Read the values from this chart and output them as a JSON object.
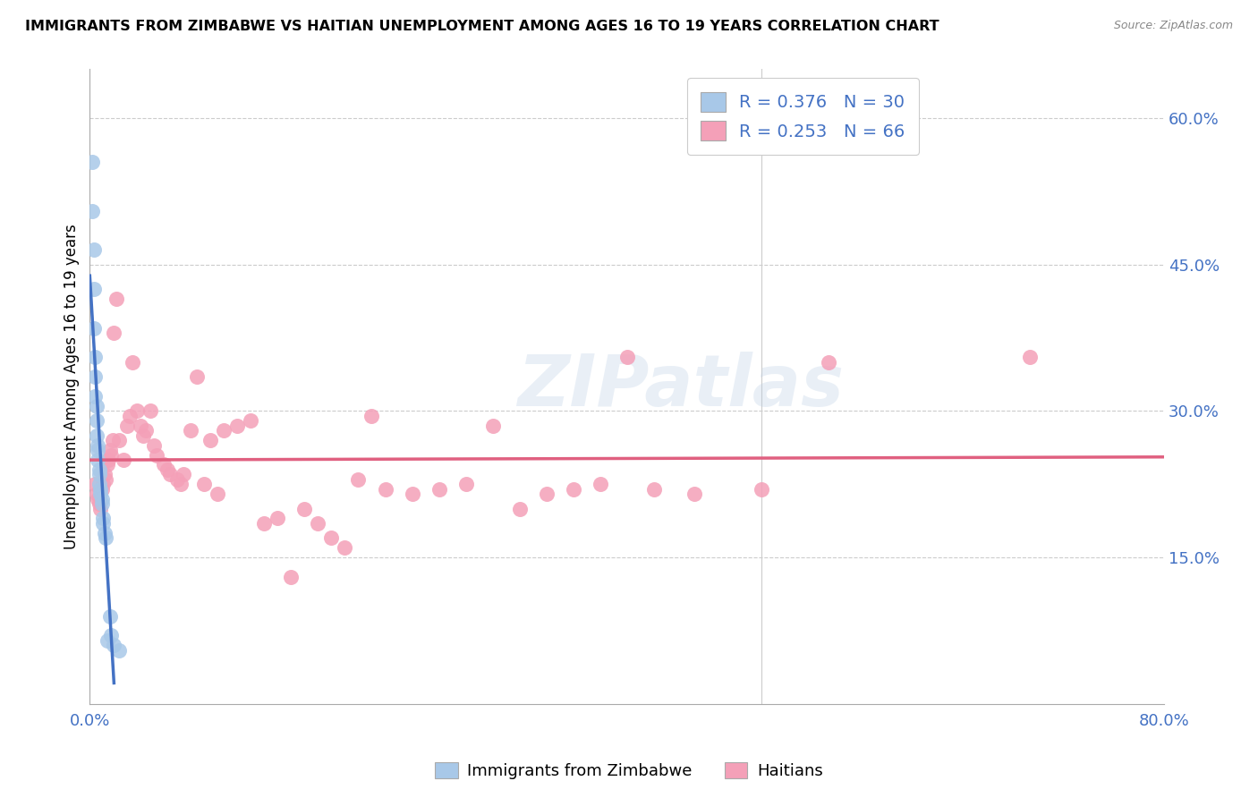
{
  "title": "IMMIGRANTS FROM ZIMBABWE VS HAITIAN UNEMPLOYMENT AMONG AGES 16 TO 19 YEARS CORRELATION CHART",
  "source": "Source: ZipAtlas.com",
  "ylabel": "Unemployment Among Ages 16 to 19 years",
  "xlim": [
    0,
    0.8
  ],
  "ylim": [
    0,
    0.65
  ],
  "x_tick_positions": [
    0.0,
    0.1,
    0.2,
    0.3,
    0.4,
    0.5,
    0.6,
    0.7,
    0.8
  ],
  "x_tick_labels": [
    "0.0%",
    "",
    "",
    "",
    "",
    "",
    "",
    "",
    "80.0%"
  ],
  "y_ticks_right": [
    0.15,
    0.3,
    0.45,
    0.6
  ],
  "y_tick_labels_right": [
    "15.0%",
    "30.0%",
    "45.0%",
    "60.0%"
  ],
  "color_zimbabwe": "#a8c8e8",
  "color_haitian": "#f4a0b8",
  "color_line_zimbabwe": "#4472c4",
  "color_line_haitian": "#e06080",
  "color_text_blue": "#4472c4",
  "watermark": "ZIPatlas",
  "legend_label1": "Immigrants from Zimbabwe",
  "legend_label2": "Haitians",
  "zimbabwe_x": [
    0.002,
    0.002,
    0.003,
    0.003,
    0.003,
    0.004,
    0.004,
    0.004,
    0.005,
    0.005,
    0.005,
    0.006,
    0.006,
    0.006,
    0.007,
    0.007,
    0.007,
    0.008,
    0.008,
    0.009,
    0.009,
    0.01,
    0.01,
    0.011,
    0.012,
    0.013,
    0.015,
    0.016,
    0.018,
    0.022
  ],
  "zimbabwe_y": [
    0.555,
    0.505,
    0.465,
    0.425,
    0.385,
    0.355,
    0.335,
    0.315,
    0.305,
    0.29,
    0.275,
    0.265,
    0.26,
    0.25,
    0.24,
    0.235,
    0.225,
    0.22,
    0.215,
    0.21,
    0.205,
    0.19,
    0.185,
    0.175,
    0.17,
    0.065,
    0.09,
    0.07,
    0.06,
    0.055
  ],
  "haitian_x": [
    0.004,
    0.005,
    0.006,
    0.007,
    0.008,
    0.009,
    0.01,
    0.011,
    0.012,
    0.013,
    0.014,
    0.015,
    0.016,
    0.017,
    0.018,
    0.02,
    0.022,
    0.025,
    0.028,
    0.03,
    0.032,
    0.035,
    0.038,
    0.04,
    0.042,
    0.045,
    0.048,
    0.05,
    0.055,
    0.058,
    0.06,
    0.065,
    0.068,
    0.07,
    0.075,
    0.08,
    0.085,
    0.09,
    0.095,
    0.1,
    0.11,
    0.12,
    0.13,
    0.14,
    0.15,
    0.16,
    0.17,
    0.18,
    0.19,
    0.2,
    0.21,
    0.22,
    0.24,
    0.26,
    0.28,
    0.3,
    0.32,
    0.34,
    0.36,
    0.38,
    0.4,
    0.42,
    0.45,
    0.5,
    0.55,
    0.7
  ],
  "haitian_y": [
    0.225,
    0.215,
    0.21,
    0.205,
    0.2,
    0.22,
    0.225,
    0.235,
    0.23,
    0.245,
    0.25,
    0.26,
    0.255,
    0.27,
    0.38,
    0.415,
    0.27,
    0.25,
    0.285,
    0.295,
    0.35,
    0.3,
    0.285,
    0.275,
    0.28,
    0.3,
    0.265,
    0.255,
    0.245,
    0.24,
    0.235,
    0.23,
    0.225,
    0.235,
    0.28,
    0.335,
    0.225,
    0.27,
    0.215,
    0.28,
    0.285,
    0.29,
    0.185,
    0.19,
    0.13,
    0.2,
    0.185,
    0.17,
    0.16,
    0.23,
    0.295,
    0.22,
    0.215,
    0.22,
    0.225,
    0.285,
    0.2,
    0.215,
    0.22,
    0.225,
    0.355,
    0.22,
    0.215,
    0.22,
    0.35,
    0.355
  ]
}
